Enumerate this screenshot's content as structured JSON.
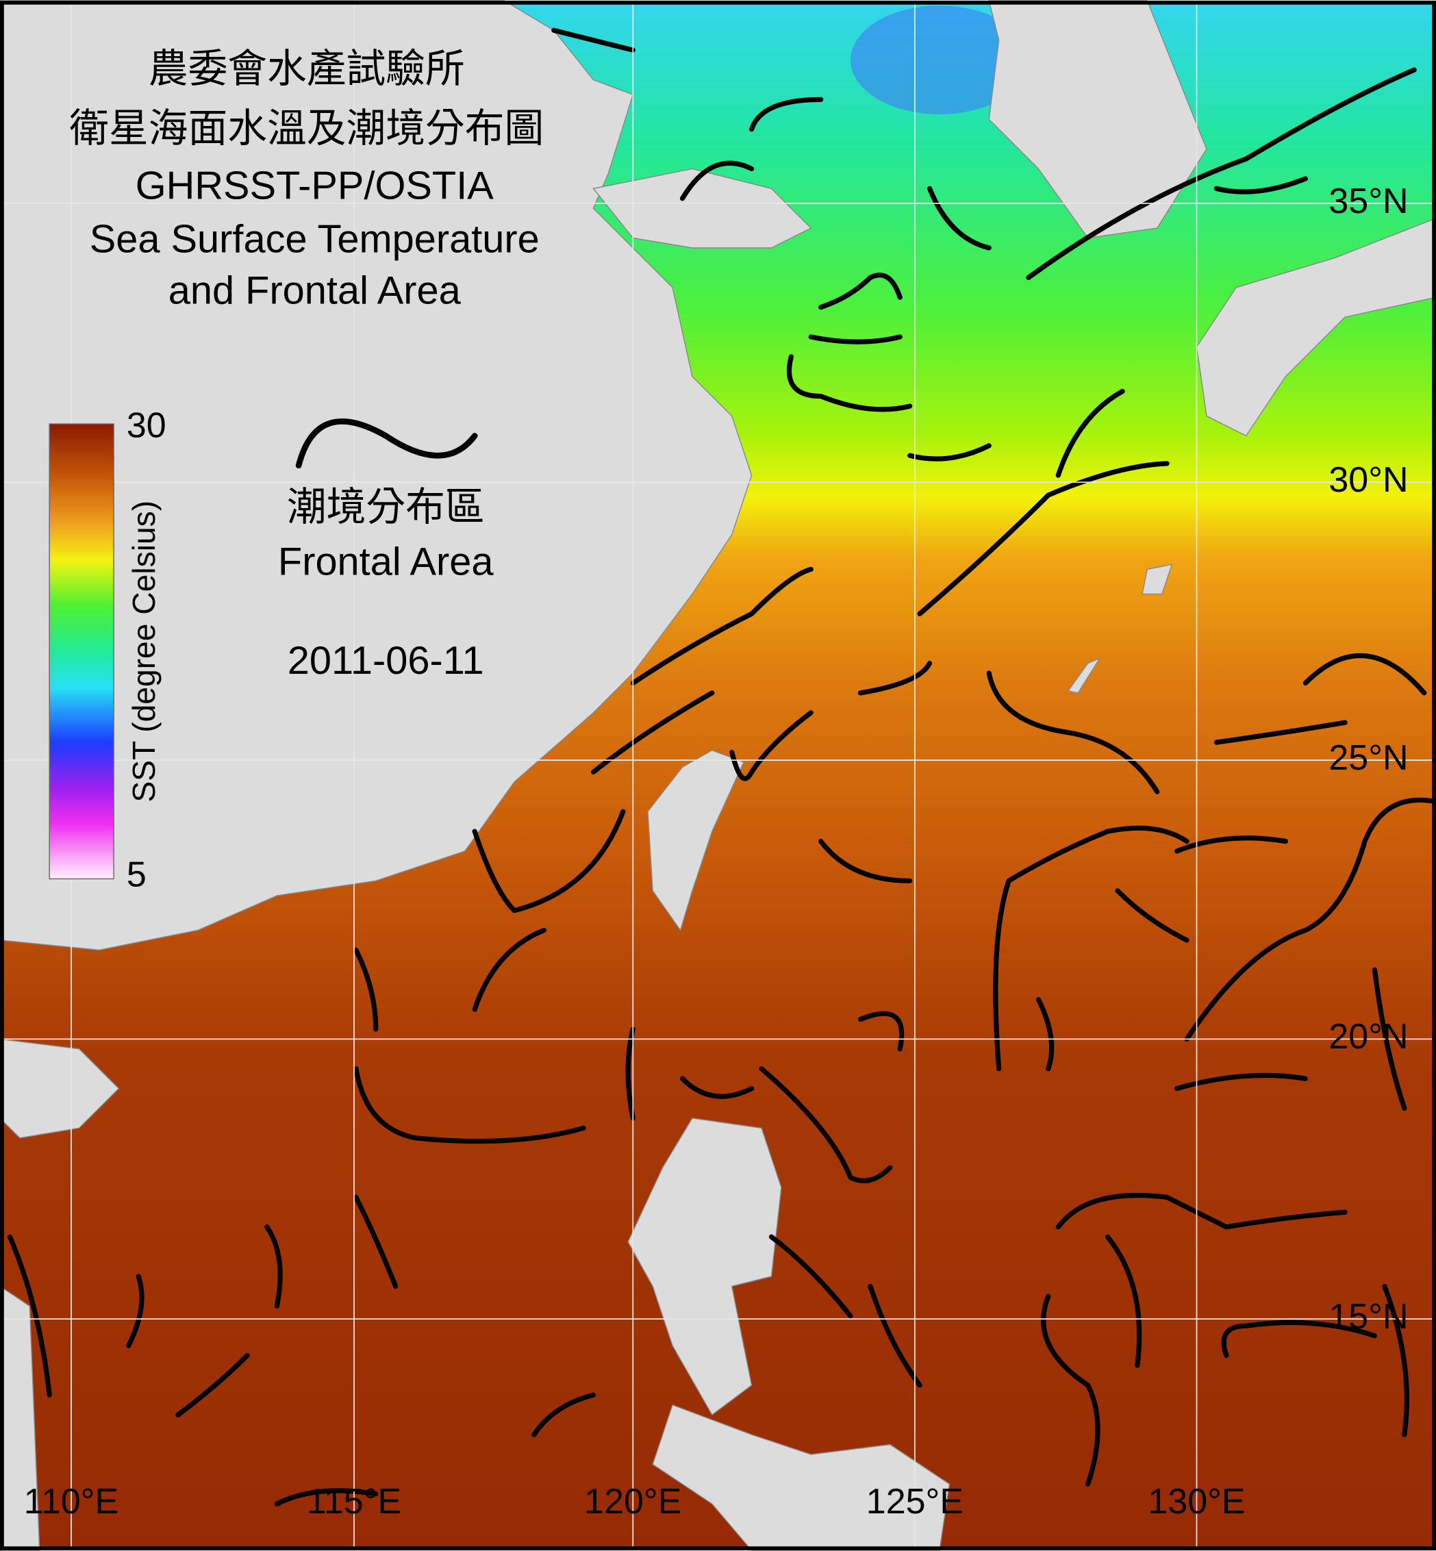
{
  "header": {
    "title_zh_1": "農委會水產試驗所",
    "title_zh_2": "衛星海面水溫及潮境分布圖",
    "title_en_1": "GHRSST-PP/OSTIA",
    "title_en_2": "Sea Surface Temperature",
    "title_en_3": "and Frontal Area"
  },
  "colorbar": {
    "label": "SST (degree Celsius)",
    "max": 30,
    "min": 5
  },
  "legend": {
    "label_zh": "潮境分布區",
    "label_en": "Frontal Area"
  },
  "date": "2011-06-11",
  "lat_labels": [
    "35°N",
    "30°N",
    "25°N",
    "20°N",
    "15°N"
  ],
  "lon_labels": [
    "110°E",
    "115°E",
    "120°E",
    "125°E",
    "130°E"
  ]
}
